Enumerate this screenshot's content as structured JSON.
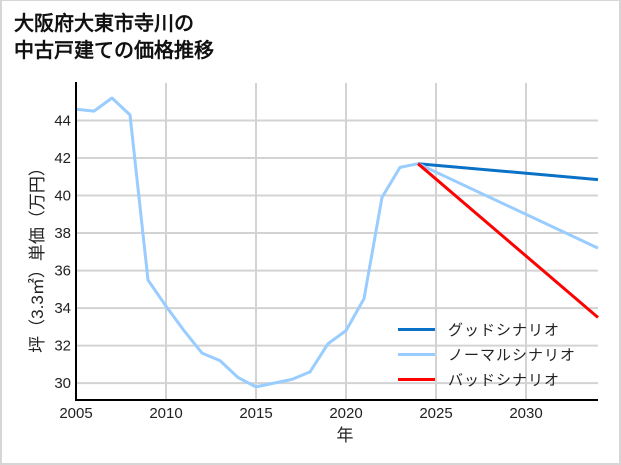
{
  "title": {
    "line1": "大阪府大東市寺川の",
    "line2": "中古戸建ての価格推移"
  },
  "chart_data": {
    "type": "line",
    "title": "大阪府大東市寺川の中古戸建ての価格推移",
    "xlabel": "年",
    "ylabel": "坪（3.3㎡）単価（万円）",
    "xlim": [
      2005,
      2034
    ],
    "ylim": [
      29.1,
      46.0
    ],
    "xticks": [
      2005,
      2010,
      2015,
      2020,
      2025,
      2030
    ],
    "yticks": [
      30,
      32,
      34,
      36,
      38,
      40,
      42,
      44
    ],
    "grid": true,
    "legend_position": "lower right",
    "series": [
      {
        "name": "",
        "show_in_legend": false,
        "color": "#99ccff",
        "x": [
          2005,
          2006,
          2007,
          2008,
          2009,
          2010,
          2011,
          2012,
          2013,
          2014,
          2015,
          2016,
          2017,
          2018,
          2019,
          2020,
          2021,
          2022,
          2023,
          2024
        ],
        "y": [
          44.6,
          44.5,
          45.2,
          44.3,
          35.5,
          34.1,
          32.8,
          31.6,
          31.2,
          30.3,
          29.8,
          30.0,
          30.2,
          30.6,
          32.1,
          32.8,
          34.5,
          39.9,
          41.5,
          41.7
        ]
      },
      {
        "name": "グッドシナリオ",
        "show_in_legend": true,
        "color": "#0a72c6",
        "x": [
          2024,
          2034
        ],
        "y": [
          41.7,
          40.85
        ]
      },
      {
        "name": "ノーマルシナリオ",
        "show_in_legend": true,
        "color": "#99ccff",
        "x": [
          2024,
          2034
        ],
        "y": [
          41.7,
          37.2
        ]
      },
      {
        "name": "バッドシナリオ",
        "show_in_legend": true,
        "color": "#ff0000",
        "x": [
          2024,
          2034
        ],
        "y": [
          41.7,
          33.5
        ]
      }
    ]
  },
  "style": {
    "grid_color": "#d3d3d3",
    "axis_color": "#000000"
  }
}
